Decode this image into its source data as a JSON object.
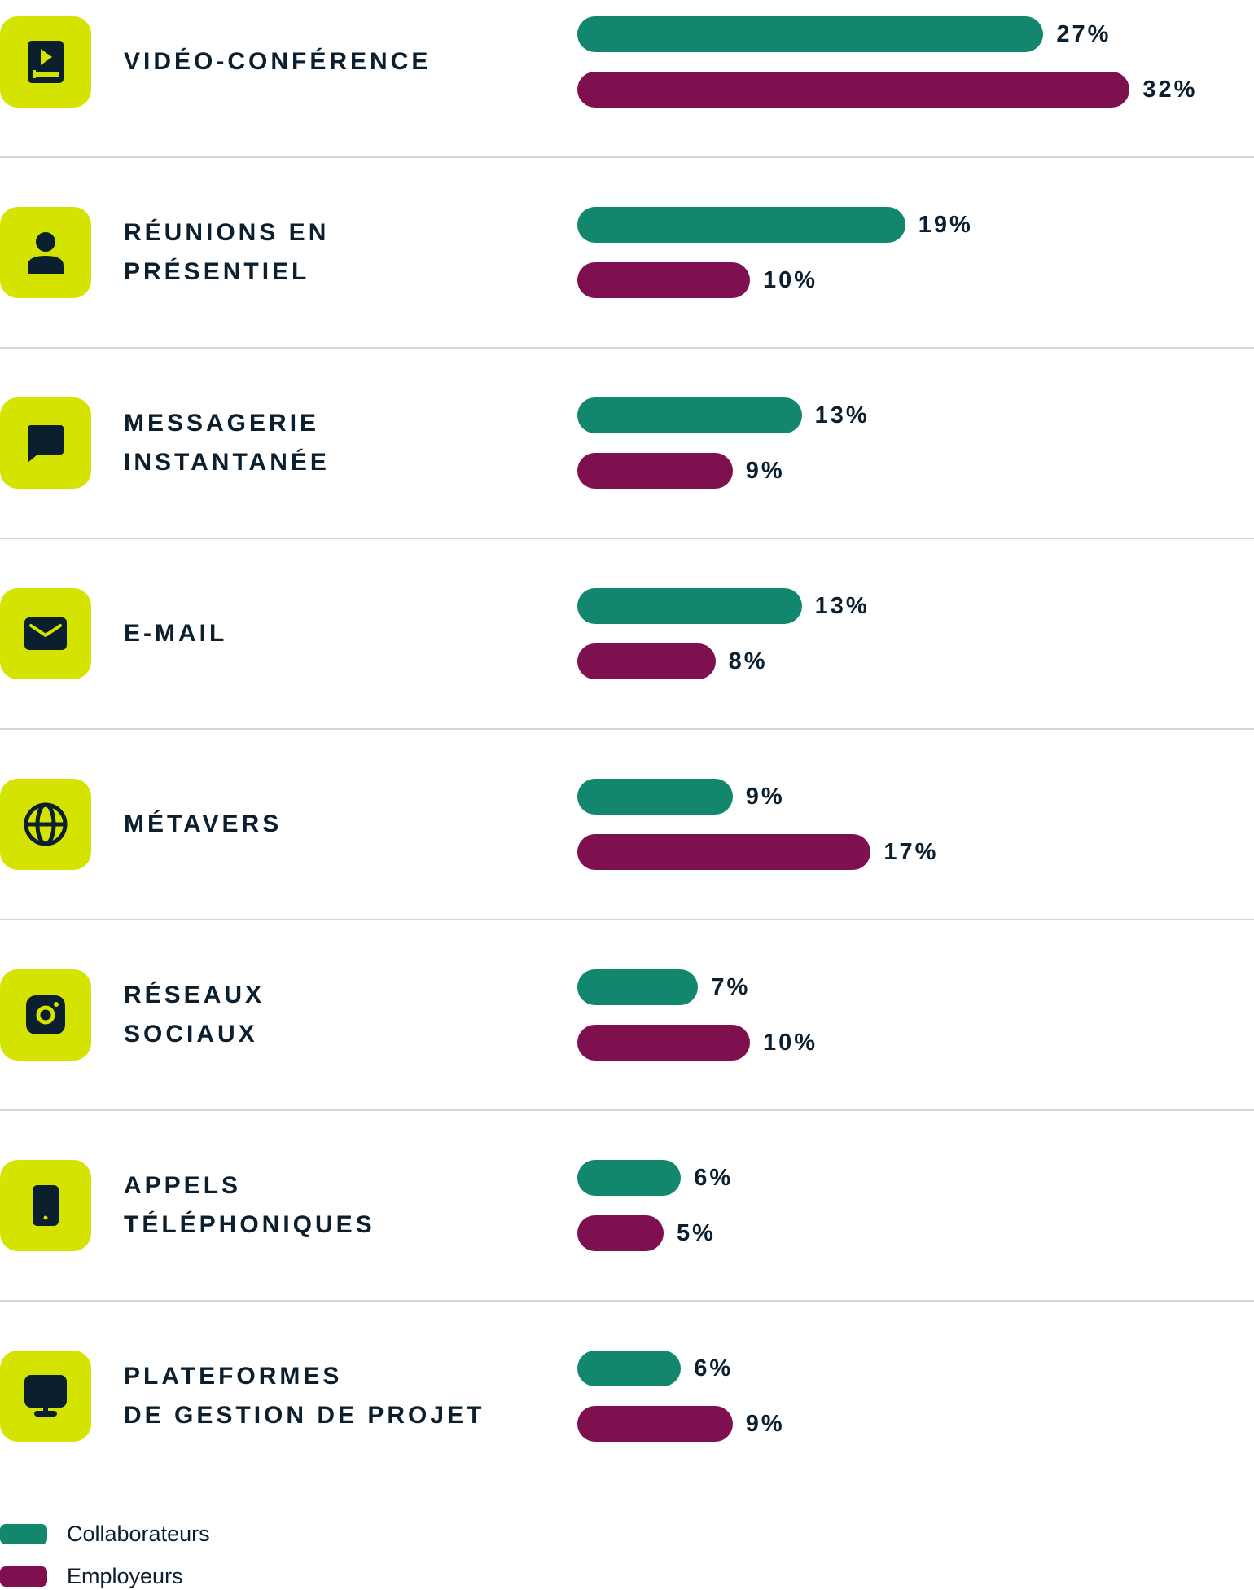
{
  "chart_data": {
    "type": "bar",
    "orientation": "horizontal",
    "unit": "%",
    "categories": [
      "VIDÉO-CONFÉRENCE",
      "RÉUNIONS EN\nPRÉSENTIEL",
      "MESSAGERIE\nINSTANTANÉE",
      "E-MAIL",
      "MÉTAVERS",
      "RÉSEAUX\nSOCIAUX",
      "APPELS\nTÉLÉPHONIQUES",
      "PLATEFORMES\nDE GESTION DE PROJET"
    ],
    "icons": [
      "video-player-icon",
      "person-icon",
      "chat-bubble-icon",
      "envelope-icon",
      "globe-icon",
      "instagram-icon",
      "smartphone-icon",
      "monitor-icon"
    ],
    "series": [
      {
        "name": "Collaborateurs",
        "color": "#12876d",
        "values": [
          27,
          19,
          13,
          13,
          9,
          7,
          6,
          6
        ],
        "labels": [
          "27%",
          "19%",
          "13%",
          "13%",
          "9%",
          "7%",
          "6%",
          "6%"
        ]
      },
      {
        "name": "Employeurs",
        "color": "#7f1050",
        "values": [
          32,
          10,
          9,
          8,
          17,
          10,
          5,
          9
        ],
        "labels": [
          "32%",
          "10%",
          "9%",
          "8%",
          "17%",
          "10%",
          "5%",
          "9%"
        ]
      }
    ],
    "legend_position": "bottom-left",
    "icon_background": "#d4e300"
  }
}
